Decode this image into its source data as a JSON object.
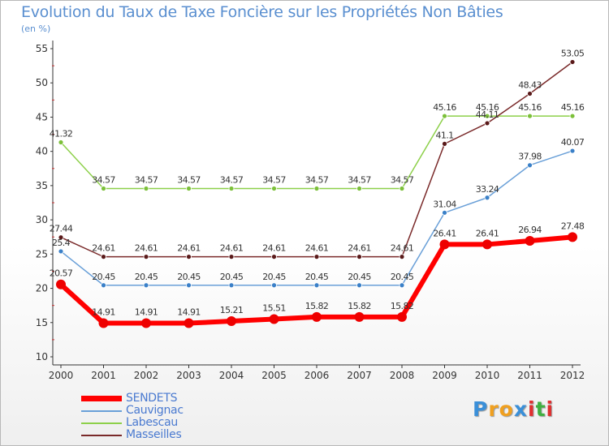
{
  "chart_data": {
    "type": "line",
    "title": "Evolution du Taux de Taxe Foncière sur les Propriétés Non Bâties",
    "unit_label": "(en %)",
    "categories": [
      "2000",
      "2001",
      "2002",
      "2003",
      "2004",
      "2005",
      "2006",
      "2007",
      "2008",
      "2009",
      "2010",
      "2011",
      "2012"
    ],
    "ylim": [
      10,
      55
    ],
    "yticks": [
      10,
      15,
      20,
      25,
      30,
      35,
      40,
      45,
      50,
      55
    ],
    "series": [
      {
        "name": "Labescau",
        "color": "#8dd04a",
        "dot": "#7cc03a",
        "width": 1.5,
        "radius": 3,
        "values": [
          41.32,
          34.57,
          34.57,
          34.57,
          34.57,
          34.57,
          34.57,
          34.57,
          34.57,
          45.16,
          45.16,
          45.16,
          45.16
        ],
        "labels": [
          "41.32",
          "34.57",
          "34.57",
          "34.57",
          "34.57",
          "34.57",
          "34.57",
          "34.57",
          "34.57",
          "45.16",
          "45.16",
          "45.16",
          "45.16"
        ]
      },
      {
        "name": "Masseilles",
        "color": "#7a2a2a",
        "dot": "#5a1a1a",
        "width": 1.5,
        "radius": 3,
        "values": [
          27.44,
          24.61,
          24.61,
          24.61,
          24.61,
          24.61,
          24.61,
          24.61,
          24.61,
          41.1,
          44.11,
          48.43,
          53.05
        ],
        "labels": [
          "27.44",
          "24.61",
          "24.61",
          "24.61",
          "24.61",
          "24.61",
          "24.61",
          "24.61",
          "24.61",
          "41.1",
          "44.11",
          "48.43",
          "53.05"
        ]
      },
      {
        "name": "Cauvignac",
        "color": "#6aa0d8",
        "dot": "#3a80c8",
        "width": 1.5,
        "radius": 3,
        "values": [
          25.4,
          20.45,
          20.45,
          20.45,
          20.45,
          20.45,
          20.45,
          20.45,
          20.45,
          31.04,
          33.24,
          37.98,
          40.07
        ],
        "labels": [
          "25.4",
          "20.45",
          "20.45",
          "20.45",
          "20.45",
          "20.45",
          "20.45",
          "20.45",
          "20.45",
          "31.04",
          "33.24",
          "37.98",
          "40.07"
        ]
      },
      {
        "name": "SENDETS",
        "color": "#ff0000",
        "dot": "#ee0000",
        "width": 6,
        "radius": 6,
        "values": [
          20.57,
          14.91,
          14.91,
          14.91,
          15.21,
          15.51,
          15.82,
          15.82,
          15.82,
          26.41,
          26.41,
          26.94,
          27.48
        ],
        "labels": [
          "20.57",
          "14.91",
          "14.91",
          "14.91",
          "15.21",
          "15.51",
          "15.82",
          "15.82",
          "15.82",
          "26.41",
          "26.41",
          "26.94",
          "27.48"
        ]
      }
    ],
    "legend": [
      {
        "name": "SENDETS",
        "color": "#ff0000",
        "thick": true
      },
      {
        "name": "Cauvignac",
        "color": "#6aa0d8",
        "thick": false
      },
      {
        "name": "Labescau",
        "color": "#8dd04a",
        "thick": false
      },
      {
        "name": "Masseilles",
        "color": "#7a2a2a",
        "thick": false
      }
    ]
  },
  "brand": {
    "letters": [
      "P",
      "r",
      "o",
      "x",
      "i",
      "t",
      "i"
    ],
    "colors": [
      "#3a8fd8",
      "#f0a020",
      "#f0a020",
      "#3a8fd8",
      "#e03030",
      "#40b040",
      "#e03030"
    ]
  }
}
